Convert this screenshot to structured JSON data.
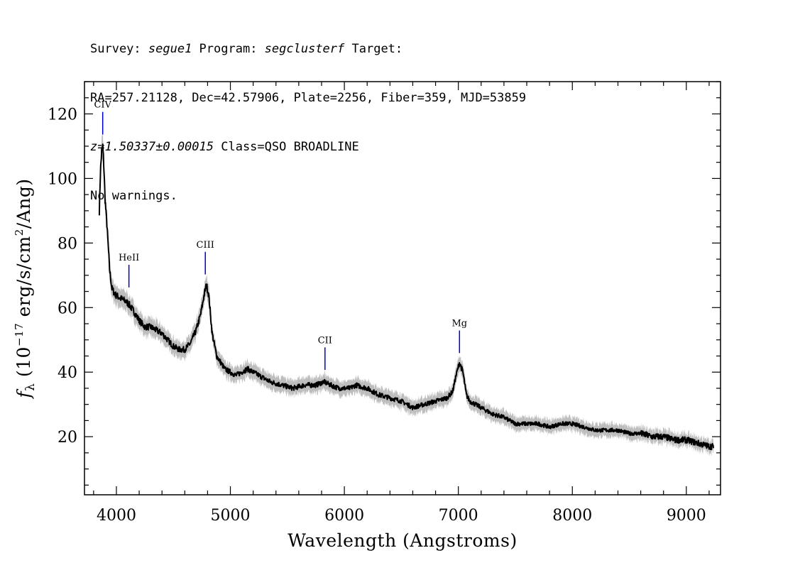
{
  "header": {
    "line1": {
      "survey_label": "Survey: ",
      "survey": "segue1",
      "program_label": " Program: ",
      "program": "segclusterf",
      "target_label": " Target:"
    },
    "line2": "RA=257.21128, Dec=42.57906, Plate=2256, Fiber=359, MJD=53859",
    "line3": {
      "z": "z=1.50337±0.00015",
      "class": " Class=QSO BROADLINE"
    },
    "line4": "No warnings."
  },
  "chart_data": {
    "type": "line",
    "xlabel": "Wavelength (Angstroms)",
    "ylabel": "f_λ (10^-17 erg/s/cm^2/Ang)",
    "ylabel_parts": {
      "f": "f",
      "sub": "λ",
      "base": " (10",
      "exp1": "−17",
      "mid": " erg/s/cm",
      "exp2": "2",
      "end": "/Ang)"
    },
    "xlim": [
      3720,
      9300
    ],
    "ylim": [
      2,
      130
    ],
    "xticks": [
      4000,
      5000,
      6000,
      7000,
      8000,
      9000
    ],
    "yticks": [
      20,
      40,
      60,
      80,
      100,
      120
    ],
    "grid": false,
    "colors": {
      "flux": "#000000",
      "error_band": "#bdbdbd",
      "emission_marker": "#0000cc"
    },
    "series": [
      {
        "x": [
          3850,
          3860,
          3870,
          3880,
          3890,
          3900,
          3920,
          3940,
          3960,
          3990,
          4030,
          4080,
          4110,
          4150,
          4200,
          4250,
          4300,
          4350,
          4400,
          4450,
          4500,
          4550,
          4600,
          4650,
          4700,
          4740,
          4770,
          4790,
          4810,
          4840,
          4880,
          4950,
          5050,
          5150,
          5250,
          5350,
          5450,
          5550,
          5650,
          5750,
          5820,
          5880,
          5950,
          6050,
          6100,
          6200,
          6300,
          6400,
          6500,
          6600,
          6700,
          6800,
          6900,
          6950,
          6980,
          7010,
          7040,
          7070,
          7100,
          7200,
          7300,
          7400,
          7500,
          7600,
          7700,
          7800,
          7900,
          8000,
          8100,
          8200,
          8300,
          8400,
          8500,
          8600,
          8700,
          8800,
          8900,
          9000,
          9100,
          9200,
          9240
        ],
        "y": [
          90,
          102,
          108,
          110,
          104,
          94,
          84,
          72,
          66,
          64,
          63,
          62,
          61,
          59,
          56,
          54,
          54,
          53,
          52,
          50,
          48,
          47,
          47,
          49,
          53,
          58,
          64,
          67,
          64,
          52,
          45,
          41,
          39,
          41,
          39,
          37,
          36,
          35,
          36,
          36,
          37,
          36,
          35,
          35,
          36,
          35,
          33,
          32,
          31,
          29,
          30,
          31,
          32,
          34,
          39,
          43,
          40,
          33,
          31,
          29,
          27,
          26,
          24,
          24,
          24,
          23,
          24,
          24,
          23,
          22,
          22,
          22,
          21,
          21,
          20,
          20,
          19,
          19,
          18,
          17,
          17
        ]
      }
    ],
    "emission_lines": [
      {
        "name": "CIV",
        "x": 3880
      },
      {
        "name": "HeII",
        "x": 4110
      },
      {
        "name": "CIII",
        "x": 4780
      },
      {
        "name": "CII",
        "x": 5830
      },
      {
        "name": "Mg",
        "x": 7010
      }
    ]
  }
}
